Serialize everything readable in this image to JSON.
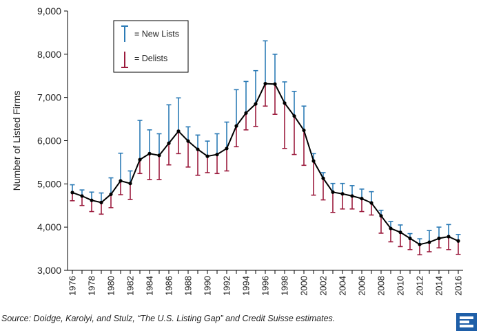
{
  "chart_data": {
    "type": "line",
    "title": "",
    "xlabel": "",
    "ylabel": "Number of Listed Firms",
    "ylim": [
      3000,
      9000
    ],
    "yticks": [
      3000,
      4000,
      5000,
      6000,
      7000,
      8000,
      9000
    ],
    "ytick_labels": [
      "3,000",
      "4,000",
      "5,000",
      "6,000",
      "7,000",
      "8,000",
      "9,000"
    ],
    "xticks": [
      1976,
      1978,
      1980,
      1982,
      1984,
      1986,
      1988,
      1990,
      1992,
      1994,
      1996,
      1998,
      2000,
      2002,
      2004,
      2006,
      2008,
      2010,
      2012,
      2014,
      2016
    ],
    "legend": [
      {
        "label": "= New Lists",
        "color": "#2c7bb6"
      },
      {
        "label": "= Delists",
        "color": "#9b1b3d"
      }
    ],
    "series": [
      {
        "name": "Listed firms",
        "color": "#000000",
        "x": [
          1976,
          1977,
          1978,
          1979,
          1980,
          1981,
          1982,
          1983,
          1984,
          1985,
          1986,
          1987,
          1988,
          1989,
          1990,
          1991,
          1992,
          1993,
          1994,
          1995,
          1996,
          1997,
          1998,
          1999,
          2000,
          2001,
          2002,
          2003,
          2004,
          2005,
          2006,
          2007,
          2008,
          2009,
          2010,
          2011,
          2012,
          2013,
          2014,
          2015,
          2016
        ],
        "values": [
          4800,
          4720,
          4620,
          4570,
          4760,
          5070,
          5010,
          5560,
          5700,
          5660,
          5940,
          6220,
          5990,
          5800,
          5640,
          5680,
          5820,
          6340,
          6640,
          6850,
          7320,
          7310,
          6870,
          6570,
          6240,
          5530,
          5130,
          4810,
          4770,
          4720,
          4660,
          4560,
          4260,
          3970,
          3880,
          3740,
          3600,
          3650,
          3740,
          3780,
          3680
        ]
      },
      {
        "name": "New Lists",
        "color": "#2c7bb6",
        "values": [
          4980,
          4860,
          4810,
          4790,
          5140,
          5710,
          5300,
          6470,
          6250,
          6160,
          6830,
          6990,
          6320,
          6130,
          5990,
          6160,
          6430,
          7180,
          7370,
          7620,
          8310,
          8000,
          7360,
          7140,
          6800,
          5700,
          5260,
          5010,
          5010,
          4960,
          4880,
          4820,
          4390,
          4130,
          4050,
          3850,
          3730,
          3920,
          4000,
          4060,
          3830
        ]
      },
      {
        "name": "Delists",
        "color": "#9b1b3d",
        "values": [
          4610,
          4500,
          4360,
          4300,
          4450,
          4750,
          4640,
          5240,
          5100,
          5100,
          5440,
          5700,
          5390,
          5200,
          5260,
          5240,
          5300,
          5860,
          6250,
          6330,
          6800,
          6610,
          5820,
          5680,
          5430,
          4740,
          4630,
          4340,
          4420,
          4420,
          4360,
          4280,
          3860,
          3660,
          3550,
          3480,
          3360,
          3430,
          3520,
          3480,
          3370
        ]
      }
    ]
  },
  "footer": {
    "source": "Source: Doidge, Karolyi, and Stulz, “The U.S. Listing Gap” and Credit Suisse estimates.",
    "logo_icon": "credit-suisse-logo-icon"
  }
}
